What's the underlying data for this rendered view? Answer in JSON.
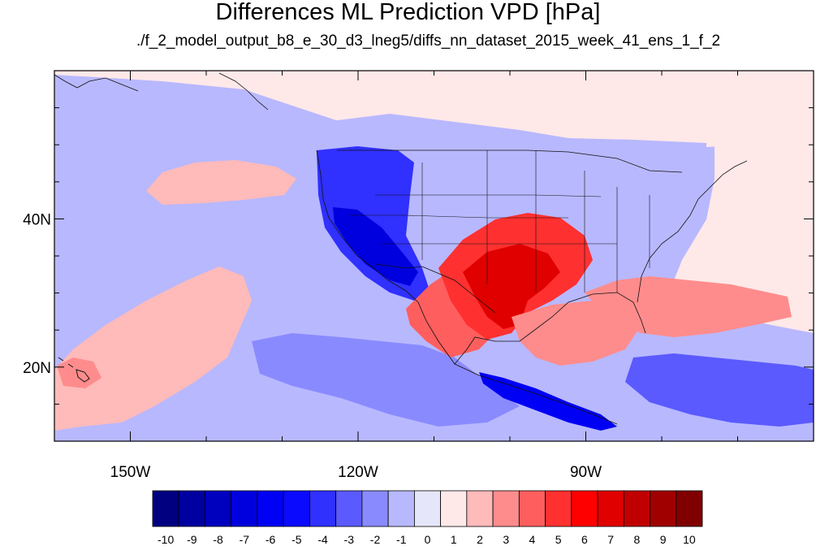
{
  "chart_data": {
    "type": "heatmap",
    "title": "Differences ML Prediction VPD [hPa]",
    "subtitle": "./f_2_model_output_b8_e_30_d3_lneg5/diffs_nn_dataset_2015_week_41_ens_1_f_2",
    "projection": "cylindrical-equidistant",
    "lon_range": [
      -160,
      -60
    ],
    "lat_range": [
      10,
      60
    ],
    "x_ticks": [
      {
        "lon": -150,
        "label": "150W"
      },
      {
        "lon": -120,
        "label": "120W"
      },
      {
        "lon": -90,
        "label": "90W"
      }
    ],
    "y_ticks": [
      {
        "lat": 20,
        "label": "20N"
      },
      {
        "lat": 40,
        "label": "40N"
      }
    ],
    "colorbar": {
      "labels": [
        "-10",
        "-9",
        "-8",
        "-7",
        "-6",
        "-5",
        "-4",
        "-3",
        "-2",
        "-1",
        "0",
        "1",
        "2",
        "3",
        "4",
        "5",
        "6",
        "7",
        "8",
        "9",
        "10"
      ],
      "colors": [
        "#000080",
        "#0000a0",
        "#0000bf",
        "#0000de",
        "#0000f5",
        "#0a0aff",
        "#3030ff",
        "#5a5aff",
        "#8a8aff",
        "#b8b8ff",
        "#e6e6fa",
        "#ffe8e8",
        "#ffbaba",
        "#ff8c8c",
        "#ff5e5e",
        "#ff3030",
        "#ff0000",
        "#e00000",
        "#c00000",
        "#a00000",
        "#800000"
      ]
    },
    "regions": [
      {
        "name": "ocean-west-background",
        "value": -0.5
      },
      {
        "name": "gulf-of-alaska",
        "value": 0.5
      },
      {
        "name": "north-pacific-band",
        "value": 1.5
      },
      {
        "name": "subtropical-pacific",
        "value": 1.5
      },
      {
        "name": "hawaii-region",
        "value": 2.5
      },
      {
        "name": "mexico-pacific-coast",
        "value": -1.5
      },
      {
        "name": "central-america",
        "value": -5.5
      },
      {
        "name": "us-west-coast",
        "value": -3.5
      },
      {
        "name": "california-southwest",
        "value": -6.5
      },
      {
        "name": "texas-southern-plains",
        "value": 4.5
      },
      {
        "name": "texas-core",
        "value": 6.5
      },
      {
        "name": "northern-mexico",
        "value": 3.5
      },
      {
        "name": "gulf-of-mexico",
        "value": 2.5
      },
      {
        "name": "florida-atlantic",
        "value": 2.5
      },
      {
        "name": "north-atlantic",
        "value": 0.5
      },
      {
        "name": "northern-plains",
        "value": -0.5
      },
      {
        "name": "canada",
        "value": -0.5
      },
      {
        "name": "caribbean",
        "value": -2.5
      }
    ]
  }
}
